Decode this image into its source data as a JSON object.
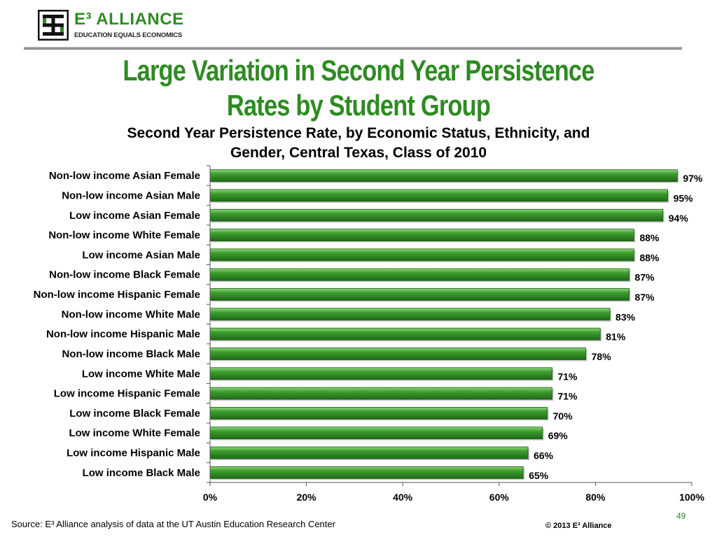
{
  "logo": {
    "name": "E³ ALLIANCE",
    "tagline": "EDUCATION EQUALS ECONOMICS",
    "icon": "e3-alliance-logo-icon"
  },
  "slide": {
    "title_line1": "Large Variation in Second Year Persistence",
    "title_line2": "Rates by Student Group",
    "source": "Source: E³ Alliance analysis of data at the UT Austin Education Research Center",
    "page_number": "49",
    "copyright": "© 2013 E³ Alliance"
  },
  "colors": {
    "brand_green": "#2e8b22",
    "bar_green": "#3a9a2a",
    "bar_dark": "#1f6a16"
  },
  "chart_data": {
    "type": "bar",
    "orientation": "horizontal",
    "title_line1": "Second Year Persistence Rate, by Economic Status, Ethnicity, and",
    "title_line2": "Gender, Central Texas, Class of 2010",
    "categories": [
      "Non-low income Asian Female",
      "Non-low income Asian Male",
      "Low income Asian Female",
      "Non-low income White Female",
      "Low income Asian Male",
      "Non-low income Black Female",
      "Non-low income Hispanic Female",
      "Non-low income White Male",
      "Non-low income Hispanic Male",
      "Non-low income Black Male",
      "Low income White Male",
      "Low income Hispanic Female",
      "Low income Black Female",
      "Low income White Female",
      "Low income Hispanic Male",
      "Low income Black Male"
    ],
    "values": [
      97,
      95,
      94,
      88,
      88,
      87,
      87,
      83,
      81,
      78,
      71,
      71,
      70,
      69,
      66,
      65
    ],
    "value_labels": [
      "97%",
      "95%",
      "94%",
      "88%",
      "88%",
      "87%",
      "87%",
      "83%",
      "81%",
      "78%",
      "71%",
      "71%",
      "70%",
      "69%",
      "66%",
      "65%"
    ],
    "xlim": [
      0,
      100
    ],
    "xticks": [
      "0%",
      "20%",
      "40%",
      "60%",
      "80%",
      "100%"
    ],
    "grid": false,
    "legend": "none"
  }
}
